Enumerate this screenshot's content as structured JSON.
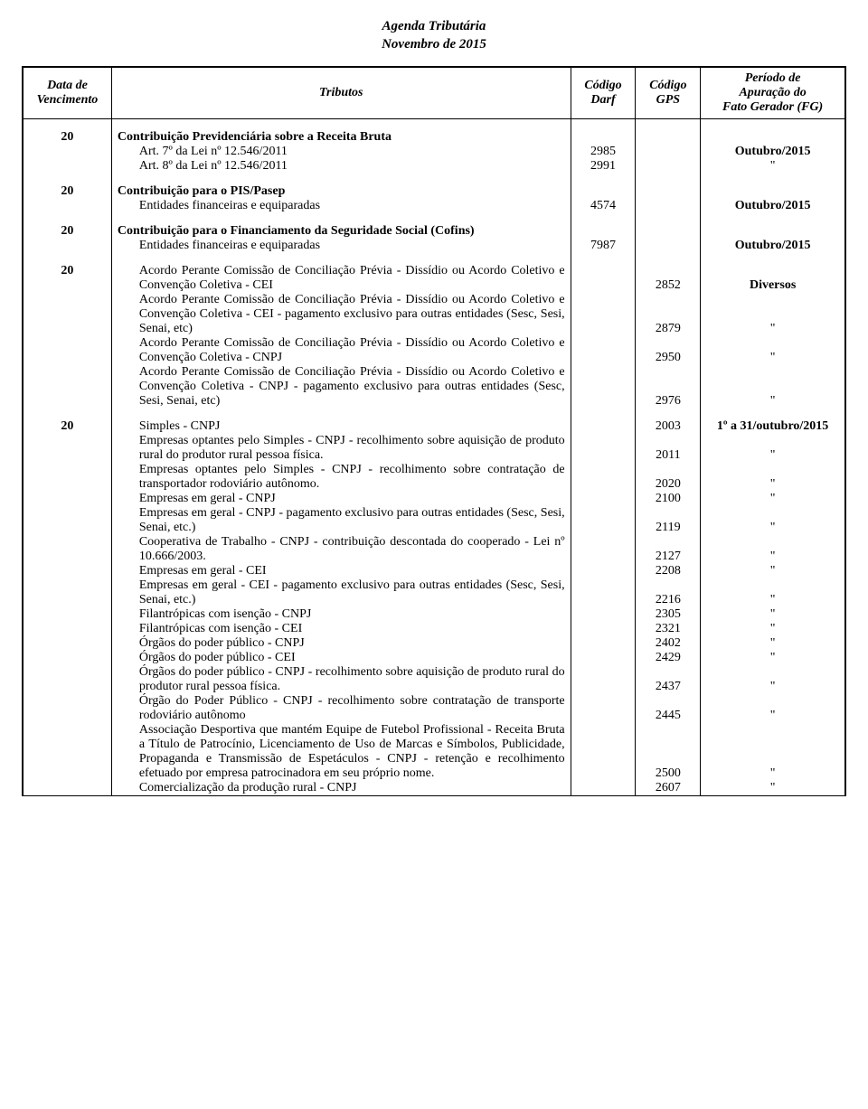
{
  "title_line1": "Agenda Tributária",
  "title_line2": "Novembro de 2015",
  "head": {
    "c1a": "Data de",
    "c1b": "Vencimento",
    "c2": "Tributos",
    "c3a": "Código",
    "c3b": "Darf",
    "c4a": "Código",
    "c4b": "GPS",
    "c5a": "Período de",
    "c5b": "Apuração do",
    "c5c": "Fato Gerador (FG)"
  },
  "sections": {
    "s1": {
      "date": "20",
      "title": "Contribuição Previdenciária sobre a Receita Bruta",
      "rows": [
        {
          "label": "Art. 7º da Lei nº 12.546/2011",
          "darf": "2985",
          "gps": "",
          "per": "Outubro/2015"
        },
        {
          "label": "Art. 8º da Lei nº 12.546/2011",
          "darf": "2991",
          "gps": "",
          "per": "\""
        }
      ]
    },
    "s2": {
      "date": "20",
      "title": "Contribuição para o PIS/Pasep",
      "rows": [
        {
          "label": "Entidades financeiras e equiparadas",
          "darf": "4574",
          "gps": "",
          "per": "Outubro/2015"
        }
      ]
    },
    "s3": {
      "date": "20",
      "title": "Contribuição para o Financiamento da Seguridade Social (Cofins)",
      "rows": [
        {
          "label": "Entidades financeiras e equiparadas",
          "darf": "7987",
          "gps": "",
          "per": "Outubro/2015"
        }
      ]
    },
    "s4": {
      "date": "20",
      "title": "",
      "rows": [
        {
          "label": "Acordo Perante Comissão de Conciliação Prévia - Dissídio ou Acordo Coletivo e Convenção Coletiva - CEI",
          "darf": "",
          "gps": "2852",
          "per": "Diversos"
        },
        {
          "label": "Acordo Perante Comissão de Conciliação Prévia - Dissídio ou Acordo Coletivo e Convenção Coletiva - CEI - pagamento exclusivo para outras entidades (Sesc, Sesi, Senai, etc)",
          "darf": "",
          "gps": "2879",
          "per": "\""
        },
        {
          "label": "Acordo Perante Comissão de Conciliação Prévia - Dissídio ou Acordo Coletivo e Convenção Coletiva - CNPJ",
          "darf": "",
          "gps": "2950",
          "per": "\""
        },
        {
          "label": "Acordo Perante Comissão de Conciliação Prévia - Dissídio ou Acordo Coletivo e Convenção Coletiva - CNPJ - pagamento exclusivo para outras entidades (Sesc, Sesi, Senai, etc)",
          "darf": "",
          "gps": "2976",
          "per": "\""
        }
      ]
    },
    "s5": {
      "date": "20",
      "rows": [
        {
          "label": "Simples - CNPJ",
          "darf": "",
          "gps": "2003",
          "per": "1º a 31/outubro/2015",
          "first": true
        },
        {
          "label": "Empresas optantes pelo Simples - CNPJ - recolhimento sobre aquisição de produto rural do produtor rural pessoa física.",
          "darf": "",
          "gps": "2011",
          "per": "\""
        },
        {
          "label": "Empresas optantes pelo Simples - CNPJ - recolhimento sobre contratação de transportador rodoviário autônomo.",
          "darf": "",
          "gps": "2020",
          "per": "\""
        },
        {
          "label": "Empresas em geral - CNPJ",
          "darf": "",
          "gps": "2100",
          "per": "\""
        },
        {
          "label": "Empresas em geral - CNPJ - pagamento exclusivo para outras entidades (Sesc, Sesi, Senai, etc.)",
          "darf": "",
          "gps": "2119",
          "per": "\""
        },
        {
          "label": "Cooperativa de Trabalho - CNPJ - contribuição descontada do cooperado - Lei nº 10.666/2003.",
          "darf": "",
          "gps": "2127",
          "per": "\""
        },
        {
          "label": "Empresas em geral - CEI",
          "darf": "",
          "gps": "2208",
          "per": "\""
        },
        {
          "label": "Empresas em geral - CEI - pagamento exclusivo para outras entidades (Sesc, Sesi, Senai, etc.)",
          "darf": "",
          "gps": "2216",
          "per": "\""
        },
        {
          "label": "Filantrópicas com isenção - CNPJ",
          "darf": "",
          "gps": "2305",
          "per": "\""
        },
        {
          "label": "Filantrópicas com isenção - CEI",
          "darf": "",
          "gps": "2321",
          "per": "\""
        },
        {
          "label": "Órgãos do poder público - CNPJ",
          "darf": "",
          "gps": "2402",
          "per": "\""
        },
        {
          "label": "Órgãos do poder público - CEI",
          "darf": "",
          "gps": "2429",
          "per": "\""
        },
        {
          "label": "Órgãos do poder público - CNPJ - recolhimento sobre aquisição de produto rural do produtor rural pessoa física.",
          "darf": "",
          "gps": "2437",
          "per": "\""
        },
        {
          "label": "Órgão do Poder Público - CNPJ - recolhimento sobre contratação de transporte rodoviário autônomo",
          "darf": "",
          "gps": "2445",
          "per": "\""
        },
        {
          "label": "Associação Desportiva que mantém Equipe de Futebol Profissional - Receita Bruta a Título de Patrocínio, Licenciamento de Uso de Marcas e Símbolos, Publicidade, Propaganda e Transmissão de Espetáculos - CNPJ - retenção e recolhimento efetuado por empresa patrocinadora em seu próprio nome.",
          "darf": "",
          "gps": "2500",
          "per": "\""
        },
        {
          "label": "Comercialização da produção rural - CNPJ",
          "darf": "",
          "gps": "2607",
          "per": "\""
        }
      ]
    }
  }
}
